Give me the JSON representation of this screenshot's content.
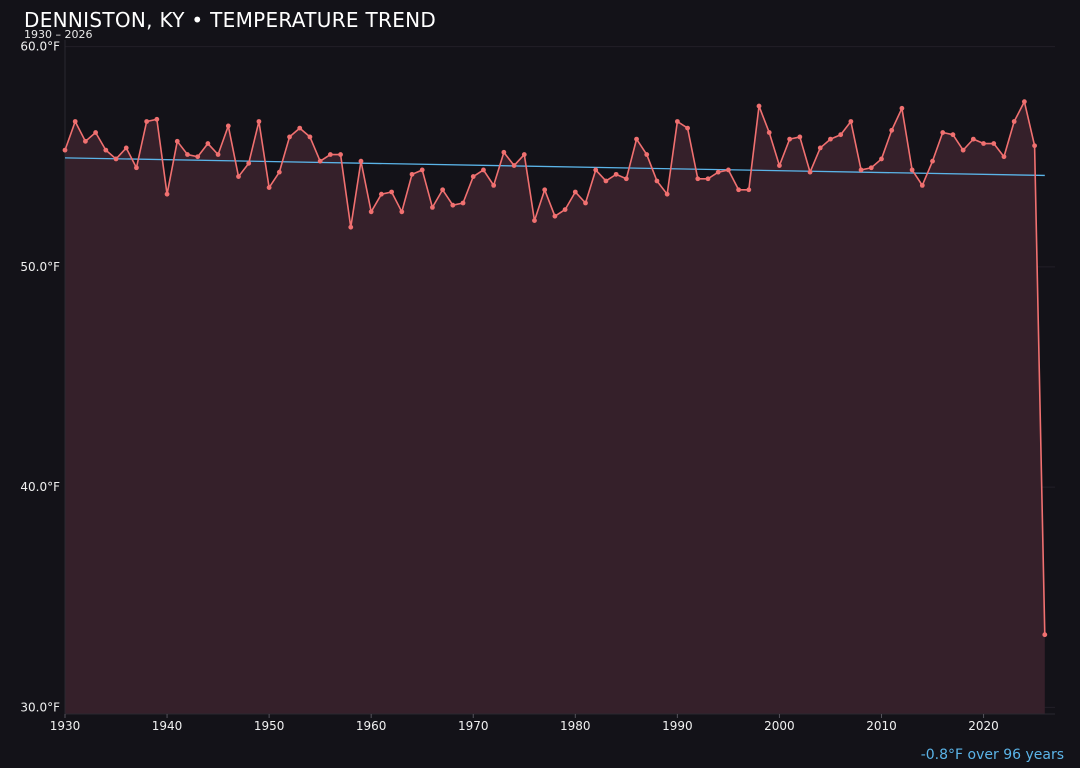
{
  "header": {
    "title": "DENNISTON, KY • TEMPERATURE TREND",
    "subtitle": "1930 – 2026"
  },
  "footer": {
    "trend_note": "-0.8°F over 96 years"
  },
  "colors": {
    "background": "#131218",
    "line": "#f07070",
    "area_fill": "#35202a",
    "trend": "#5bb4e8",
    "grid": "#221f27"
  },
  "chart_data": {
    "type": "line",
    "title": "DENNISTON, KY • TEMPERATURE TREND",
    "subtitle": "1930 – 2026",
    "xlabel": "",
    "ylabel": "",
    "xlim": [
      1930,
      2027
    ],
    "ylim": [
      29.7,
      60.3
    ],
    "x_ticks": [
      1930,
      1940,
      1950,
      1960,
      1970,
      1980,
      1990,
      2000,
      2010,
      2020
    ],
    "y_ticks": [
      30,
      40,
      50,
      60
    ],
    "y_tick_labels": [
      "30.0°F",
      "40.0°F",
      "50.0°F",
      "60.0°F"
    ],
    "grid": true,
    "series": [
      {
        "x": [
          1930,
          1931,
          1932,
          1933,
          1934,
          1935,
          1936,
          1937,
          1938,
          1939,
          1940,
          1941,
          1942,
          1943,
          1944,
          1945,
          1946,
          1947,
          1948,
          1949,
          1950,
          1951,
          1952,
          1953,
          1954,
          1955,
          1956,
          1957,
          1958,
          1959,
          1960,
          1961,
          1962,
          1963,
          1964,
          1965,
          1966,
          1967,
          1968,
          1969,
          1970,
          1971,
          1972,
          1973,
          1974,
          1975,
          1976,
          1977,
          1978,
          1979,
          1980,
          1981,
          1982,
          1983,
          1984,
          1985,
          1986,
          1987,
          1988,
          1989,
          1990,
          1991,
          1992,
          1993,
          1994,
          1995,
          1996,
          1997,
          1998,
          1999,
          2000,
          2001,
          2002,
          2003,
          2004,
          2005,
          2006,
          2007,
          2008,
          2009,
          2010,
          2011,
          2012,
          2013,
          2014,
          2015,
          2016,
          2017,
          2018,
          2019,
          2020,
          2021,
          2022,
          2023,
          2024,
          2025,
          2026
        ],
        "values": [
          55.3,
          56.6,
          55.7,
          56.1,
          55.3,
          54.9,
          55.4,
          54.5,
          56.6,
          56.7,
          53.3,
          55.7,
          55.1,
          55.0,
          55.6,
          55.1,
          56.4,
          54.1,
          54.7,
          56.6,
          53.6,
          54.3,
          55.9,
          56.3,
          55.9,
          54.8,
          55.1,
          55.1,
          51.8,
          54.8,
          52.5,
          53.3,
          53.4,
          52.5,
          54.2,
          54.4,
          52.7,
          53.5,
          52.8,
          52.9,
          54.1,
          54.4,
          53.7,
          55.2,
          54.6,
          55.1,
          52.1,
          53.5,
          52.3,
          52.6,
          53.4,
          52.9,
          54.4,
          53.9,
          54.2,
          54.0,
          55.8,
          55.1,
          53.9,
          53.3,
          56.6,
          56.3,
          54.0,
          54.0,
          54.3,
          54.4,
          53.5,
          53.5,
          57.3,
          56.1,
          54.6,
          55.8,
          55.9,
          54.3,
          55.4,
          55.8,
          56.0,
          56.6,
          54.4,
          54.5,
          54.9,
          56.2,
          57.2,
          54.4,
          53.7,
          54.8,
          56.1,
          56.0,
          55.3,
          55.8,
          55.6,
          55.6,
          55.0,
          56.6,
          57.5,
          55.5,
          33.3
        ]
      }
    ],
    "trend": {
      "start": [
        1930,
        54.95
      ],
      "end": [
        2026,
        54.15
      ],
      "change_label": "-0.8°F over 96 years"
    }
  }
}
